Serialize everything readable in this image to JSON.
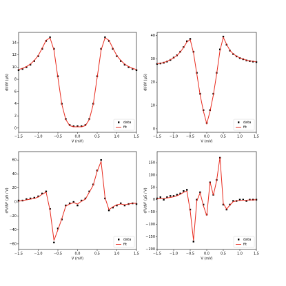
{
  "chart_data": [
    {
      "type": "line",
      "xlabel": "V (mV)",
      "ylabel": "dI/dV (μS)",
      "legend": "lower right",
      "xlim": [
        -1.5,
        1.5
      ],
      "ylim": [
        -0.7,
        15.7
      ],
      "xticks": [
        {
          "value": -1.5,
          "label": "−1.5"
        },
        {
          "value": -1.0,
          "label": "−1.0"
        },
        {
          "value": -0.5,
          "label": "−0.5"
        },
        {
          "value": 0,
          "label": "0.0"
        },
        0.5,
        {
          "value": 1.0,
          "label": "1.0"
        },
        1.5
      ],
      "yticks": [
        0,
        2,
        4,
        6,
        8,
        10,
        12,
        14
      ],
      "x": [
        -1.5,
        -1.4,
        -1.3,
        -1.2,
        -1.1,
        -1.0,
        -0.9,
        -0.8,
        -0.7,
        -0.6,
        -0.5,
        -0.4,
        -0.3,
        -0.2,
        -0.1,
        0,
        0.1,
        0.2,
        0.3,
        0.4,
        0.5,
        0.6,
        0.7,
        0.8,
        0.9,
        1.0,
        1.1,
        1.2,
        1.3,
        1.4,
        1.5
      ],
      "series": [
        {
          "name": "data",
          "color": "#000000",
          "style": "markers",
          "values": [
            9.5,
            9.7,
            10.0,
            10.4,
            11.0,
            11.8,
            13.0,
            14.3,
            14.9,
            13.0,
            8.5,
            4.0,
            1.5,
            0.5,
            0.3,
            0.3,
            0.3,
            0.5,
            1.5,
            4.0,
            8.5,
            13.0,
            14.9,
            14.3,
            13.0,
            11.8,
            11.0,
            10.4,
            10.0,
            9.7,
            9.5
          ]
        },
        {
          "name": "fit",
          "color": "#e8291c",
          "style": "line",
          "values": [
            9.6,
            9.8,
            10.1,
            10.5,
            11.1,
            11.9,
            13.1,
            14.4,
            14.8,
            12.8,
            8.3,
            3.9,
            1.4,
            0.4,
            0.2,
            0.2,
            0.2,
            0.4,
            1.4,
            3.9,
            8.3,
            12.8,
            14.8,
            14.4,
            13.1,
            11.9,
            11.1,
            10.5,
            10.1,
            9.8,
            9.6
          ]
        }
      ]
    },
    {
      "type": "line",
      "xlabel": "V (mV)",
      "ylabel": "dI/dV (μS)",
      "legend": "lower right",
      "xlim": [
        -1.5,
        1.5
      ],
      "ylim": [
        -1.5,
        41.3
      ],
      "xticks": [
        {
          "value": -1.5,
          "label": "−1.5"
        },
        {
          "value": -1.0,
          "label": "−1.0"
        },
        {
          "value": -0.5,
          "label": "−0.5"
        },
        {
          "value": 0,
          "label": "0.0"
        },
        0.5,
        {
          "value": 1.0,
          "label": "1.0"
        },
        1.5
      ],
      "yticks": [
        0,
        10,
        20,
        30,
        40
      ],
      "x": [
        -1.5,
        -1.4,
        -1.3,
        -1.2,
        -1.1,
        -1.0,
        -0.9,
        -0.8,
        -0.7,
        -0.6,
        -0.5,
        -0.4,
        -0.3,
        -0.2,
        -0.1,
        0,
        0.1,
        0.2,
        0.3,
        0.4,
        0.5,
        0.6,
        0.7,
        0.8,
        0.9,
        1.0,
        1.1,
        1.2,
        1.3,
        1.4,
        1.5
      ],
      "series": [
        {
          "name": "data",
          "color": "#000000",
          "style": "markers",
          "values": [
            27.8,
            28,
            28.3,
            28.8,
            29.5,
            30.5,
            31.5,
            33,
            35,
            37.5,
            38.5,
            33,
            24,
            15,
            8,
            2.5,
            8,
            15,
            24,
            34,
            39.5,
            36,
            33.5,
            32,
            31,
            30.3,
            29.8,
            29.3,
            29,
            28.8,
            28.6
          ]
        },
        {
          "name": "fit",
          "color": "#e8291c",
          "style": "line",
          "values": [
            27.9,
            28.1,
            28.4,
            28.9,
            29.6,
            30.4,
            31.4,
            32.9,
            34.8,
            37.2,
            38.2,
            32.5,
            23.5,
            14.5,
            7.5,
            2.2,
            7.5,
            14.5,
            23.5,
            33.5,
            39.2,
            36.2,
            33.6,
            32.1,
            31.1,
            30.4,
            29.9,
            29.4,
            29.1,
            28.9,
            28.7
          ]
        }
      ]
    },
    {
      "type": "line",
      "xlabel": "V (mV)",
      "ylabel": "d²I/dV² (μS / V)",
      "legend": "lower right",
      "xlim": [
        -1.5,
        1.5
      ],
      "ylim": [
        -68,
        72
      ],
      "xticks": [
        {
          "value": -1.5,
          "label": "−1.5"
        },
        {
          "value": -1.0,
          "label": "−1.0"
        },
        {
          "value": -0.5,
          "label": "−0.5"
        },
        {
          "value": 0,
          "label": "0.0"
        },
        0.5,
        {
          "value": 1.0,
          "label": "1.0"
        },
        1.5
      ],
      "yticks": [
        {
          "value": -60,
          "label": "−60"
        },
        {
          "value": -40,
          "label": "−40"
        },
        {
          "value": -20,
          "label": "−20"
        },
        0,
        20,
        40,
        60
      ],
      "x": [
        -1.5,
        -1.4,
        -1.3,
        -1.2,
        -1.1,
        -1.0,
        -0.9,
        -0.8,
        -0.7,
        -0.6,
        -0.5,
        -0.4,
        -0.3,
        -0.2,
        -0.1,
        0,
        0.1,
        0.2,
        0.3,
        0.4,
        0.5,
        0.6,
        0.7,
        0.8,
        0.9,
        1.0,
        1.1,
        1.2,
        1.3,
        1.4,
        1.5
      ],
      "series": [
        {
          "name": "data",
          "color": "#000000",
          "style": "markers",
          "values": [
            2,
            2,
            4,
            5,
            6,
            8,
            12,
            15,
            -10,
            -58,
            -38,
            -25,
            -5,
            -2,
            0,
            -5,
            2,
            5,
            15,
            25,
            45,
            60,
            5,
            -12,
            -8,
            -5,
            -2,
            -5,
            -3,
            -2,
            -3
          ]
        },
        {
          "name": "fit",
          "color": "#e8291c",
          "style": "line",
          "values": [
            1,
            2,
            3,
            4,
            5,
            7,
            11,
            14,
            -12,
            -55,
            -40,
            -24,
            -6,
            -3,
            -1,
            -3,
            1,
            4,
            14,
            24,
            44,
            58,
            6,
            -11,
            -7,
            -4,
            -3,
            -4,
            -3,
            -2,
            -2
          ]
        }
      ]
    },
    {
      "type": "line",
      "xlabel": "V (mV)",
      "ylabel": "d²I/dV² (μS / V)",
      "legend": "lower right",
      "xlim": [
        -1.5,
        1.5
      ],
      "ylim": [
        -202,
        195
      ],
      "xticks": [
        {
          "value": -1.5,
          "label": "−1.5"
        },
        {
          "value": -1.0,
          "label": "−1.0"
        },
        {
          "value": -0.5,
          "label": "−0.5"
        },
        {
          "value": 0,
          "label": "0.0"
        },
        0.5,
        {
          "value": 1.0,
          "label": "1.0"
        },
        1.5
      ],
      "yticks": [
        {
          "value": -200,
          "label": "−200"
        },
        {
          "value": -150,
          "label": "−150"
        },
        {
          "value": -100,
          "label": "−100"
        },
        {
          "value": -50,
          "label": "−50"
        },
        0,
        50,
        100,
        150
      ],
      "x": [
        -1.5,
        -1.4,
        -1.3,
        -1.2,
        -1.1,
        -1.0,
        -0.9,
        -0.8,
        -0.7,
        -0.6,
        -0.5,
        -0.4,
        -0.3,
        -0.2,
        -0.1,
        0,
        0.1,
        0.2,
        0.3,
        0.4,
        0.5,
        0.6,
        0.7,
        0.8,
        0.9,
        1.0,
        1.1,
        1.2,
        1.3,
        1.4,
        1.5
      ],
      "series": [
        {
          "name": "data",
          "color": "#000000",
          "style": "markers",
          "values": [
            5,
            10,
            0,
            10,
            15,
            15,
            20,
            25,
            35,
            40,
            -40,
            -170,
            0,
            30,
            -20,
            -60,
            70,
            20,
            80,
            170,
            -20,
            -40,
            -20,
            -5,
            -5,
            0,
            0,
            -5,
            0,
            0,
            0
          ]
        },
        {
          "name": "fit",
          "color": "#e8291c",
          "style": "line",
          "values": [
            3,
            4,
            5,
            7,
            9,
            12,
            16,
            22,
            30,
            35,
            -45,
            -165,
            -5,
            28,
            -25,
            -65,
            72,
            18,
            78,
            172,
            -15,
            -38,
            -22,
            -8,
            -5,
            -3,
            -2,
            -2,
            -1,
            -1,
            0
          ]
        }
      ]
    }
  ]
}
